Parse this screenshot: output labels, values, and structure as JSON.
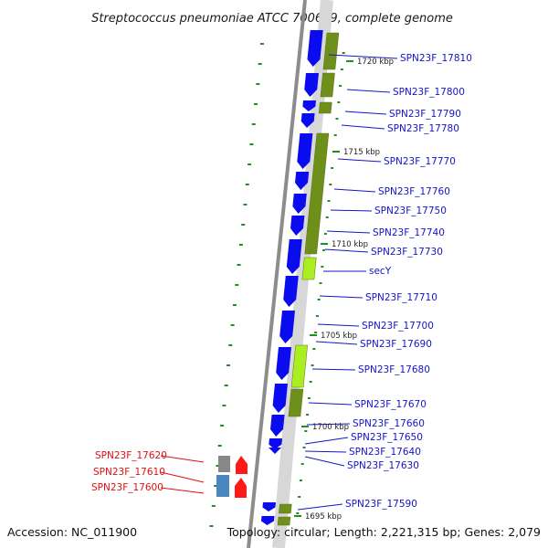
{
  "title": "Streptococcus pneumoniae ATCC 700669, complete genome",
  "footer": {
    "accession": "Accession: NC_011900",
    "summary": "Topology: circular; Length: 2,221,315 bp; Genes: 2,079"
  },
  "colors": {
    "backbone": "#8c8c8c",
    "forward_gene": "#0b0bf0",
    "reverse_gene_a": "#6f8f1c",
    "reverse_gene_b": "#aaee22",
    "highlight_label": "#e01010",
    "label": "#1414c8",
    "tick": "#1f8f1f",
    "rna_gray": "#888888",
    "rna_steel": "#4a86c0",
    "rna_red": "#ff1a1a"
  },
  "scale_labels": [
    "1720 kbp",
    "1715 kbp",
    "1710 kbp",
    "1705 kbp",
    "1700 kbp",
    "1695 kbp"
  ],
  "gene_labels": [
    {
      "text": "SPN23F_17810",
      "color": "blue"
    },
    {
      "text": "SPN23F_17800",
      "color": "blue"
    },
    {
      "text": "SPN23F_17790",
      "color": "blue"
    },
    {
      "text": "SPN23F_17780",
      "color": "blue"
    },
    {
      "text": "SPN23F_17770",
      "color": "blue"
    },
    {
      "text": "SPN23F_17760",
      "color": "blue"
    },
    {
      "text": "SPN23F_17750",
      "color": "blue"
    },
    {
      "text": "SPN23F_17740",
      "color": "blue"
    },
    {
      "text": "SPN23F_17730",
      "color": "blue"
    },
    {
      "text": "secY",
      "color": "blue"
    },
    {
      "text": "SPN23F_17710",
      "color": "blue"
    },
    {
      "text": "SPN23F_17700",
      "color": "blue"
    },
    {
      "text": "SPN23F_17690",
      "color": "blue"
    },
    {
      "text": "SPN23F_17680",
      "color": "blue"
    },
    {
      "text": "SPN23F_17670",
      "color": "blue"
    },
    {
      "text": "SPN23F_17660",
      "color": "blue"
    },
    {
      "text": "SPN23F_17650",
      "color": "blue"
    },
    {
      "text": "SPN23F_17640",
      "color": "blue"
    },
    {
      "text": "SPN23F_17630",
      "color": "blue"
    },
    {
      "text": "SPN23F_17590",
      "color": "blue"
    },
    {
      "text": "SPN23F_17620",
      "color": "red"
    },
    {
      "text": "SPN23F_17610",
      "color": "red"
    },
    {
      "text": "SPN23F_17600",
      "color": "red"
    }
  ]
}
